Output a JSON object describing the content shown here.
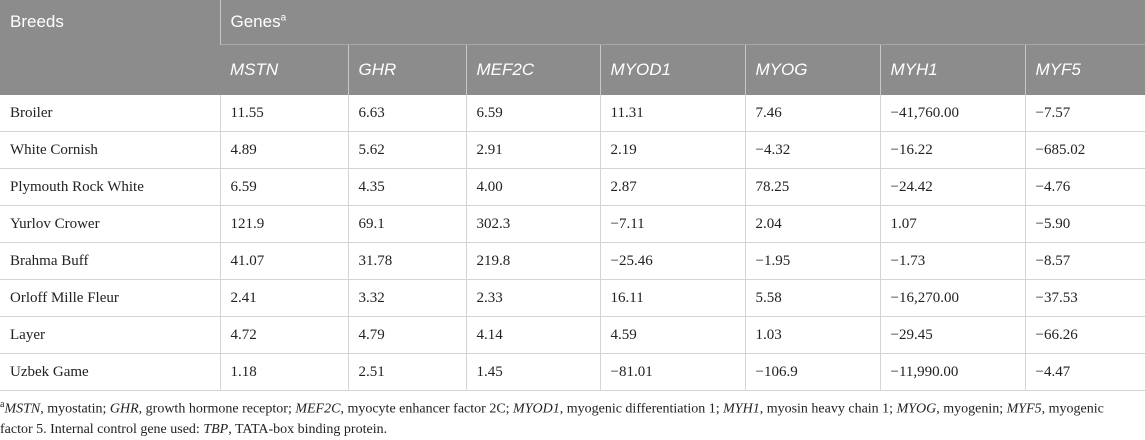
{
  "header": {
    "breeds": "Breeds",
    "genes": "Genes",
    "genes_note": "a",
    "columns": [
      "MSTN",
      "GHR",
      "MEF2C",
      "MYOD1",
      "MYOG",
      "MYH1",
      "MYF5"
    ]
  },
  "table": {
    "rows": [
      [
        "Broiler",
        "11.55",
        "6.63",
        "6.59",
        "11.31",
        "7.46",
        "−41,760.00",
        "−7.57"
      ],
      [
        "White Cornish",
        "4.89",
        "5.62",
        "2.91",
        "2.19",
        "−4.32",
        "−16.22",
        "−685.02"
      ],
      [
        "Plymouth Rock White",
        "6.59",
        "4.35",
        "4.00",
        "2.87",
        "78.25",
        "−24.42",
        "−4.76"
      ],
      [
        "Yurlov Crower",
        "121.9",
        "69.1",
        "302.3",
        "−7.11",
        "2.04",
        "1.07",
        "−5.90"
      ],
      [
        "Brahma Buff",
        "41.07",
        "31.78",
        "219.8",
        "−25.46",
        "−1.95",
        "−1.73",
        "−8.57"
      ],
      [
        "Orloff Mille Fleur",
        "2.41",
        "3.32",
        "2.33",
        "16.11",
        "5.58",
        "−16,270.00",
        "−37.53"
      ],
      [
        "Layer",
        "4.72",
        "4.79",
        "4.14",
        "4.59",
        "1.03",
        "−29.45",
        "−66.26"
      ],
      [
        "Uzbek Game",
        "1.18",
        "2.51",
        "1.45",
        "−81.01",
        "−106.9",
        "−11,990.00",
        "−4.47"
      ]
    ]
  },
  "footnote": {
    "marker": "a",
    "parts": [
      "MSTN",
      ", myostatin; ",
      "GHR",
      ", growth hormone receptor; ",
      "MEF2C",
      ", myocyte enhancer factor 2C; ",
      "MYOD1",
      ", myogenic differentiation 1; ",
      "MYH1",
      ", myosin heavy chain 1; ",
      "MYOG",
      ", myogenin; ",
      "MYF5",
      ", myogenic factor 5. Internal control gene used: ",
      "TBP",
      ", TATA-box binding protein."
    ]
  }
}
